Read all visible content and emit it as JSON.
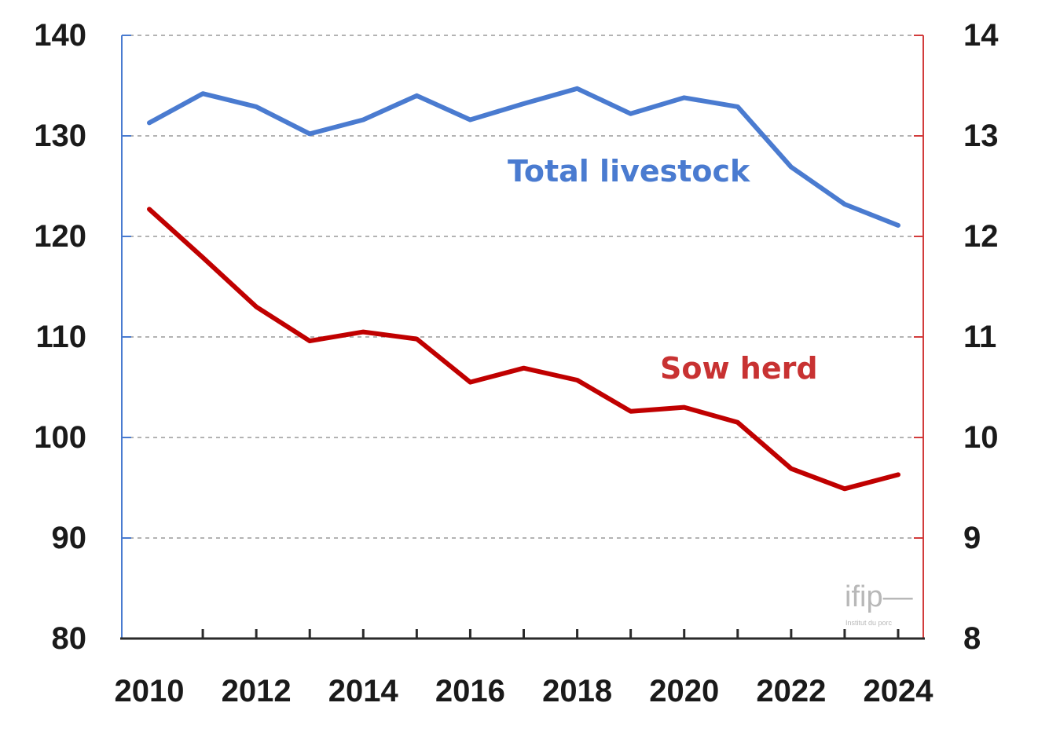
{
  "chart_data": {
    "type": "line",
    "title": "",
    "xlabel": "",
    "ylabel": "",
    "x_ticks": [
      "2010",
      "2012",
      "2014",
      "2016",
      "2018",
      "2020",
      "2022",
      "2024"
    ],
    "y_left": {
      "ticks": [
        "80",
        "90",
        "100",
        "110",
        "120",
        "130",
        "140"
      ],
      "lim": [
        80,
        140
      ],
      "color": "#4a7bd0"
    },
    "y_right": {
      "ticks": [
        "8",
        "9",
        "10",
        "11",
        "12",
        "13",
        "14"
      ],
      "lim": [
        8,
        14
      ],
      "color": "#d23c3c"
    },
    "grid": "horizontal-dashed",
    "x": [
      2010,
      2011,
      2012,
      2013,
      2014,
      2015,
      2016,
      2017,
      2018,
      2019,
      2020,
      2021,
      2022,
      2023,
      2024
    ],
    "series": [
      {
        "name": "Total livestock",
        "axis": "left",
        "color": "#4a7bd0",
        "values": [
          131.3,
          134.2,
          132.9,
          130.2,
          131.6,
          134.0,
          131.6,
          133.2,
          134.7,
          132.2,
          133.8,
          132.9,
          126.9,
          123.2,
          121.1
        ]
      },
      {
        "name": "Sow herd",
        "axis": "right",
        "color": "#c00000",
        "values": [
          12.27,
          11.79,
          11.3,
          10.96,
          11.05,
          10.98,
          10.55,
          10.69,
          10.57,
          10.26,
          10.3,
          10.15,
          9.69,
          9.49,
          9.63
        ]
      }
    ]
  },
  "watermark": {
    "logo_text": "ifip—",
    "tagline": "Institut du porc"
  }
}
